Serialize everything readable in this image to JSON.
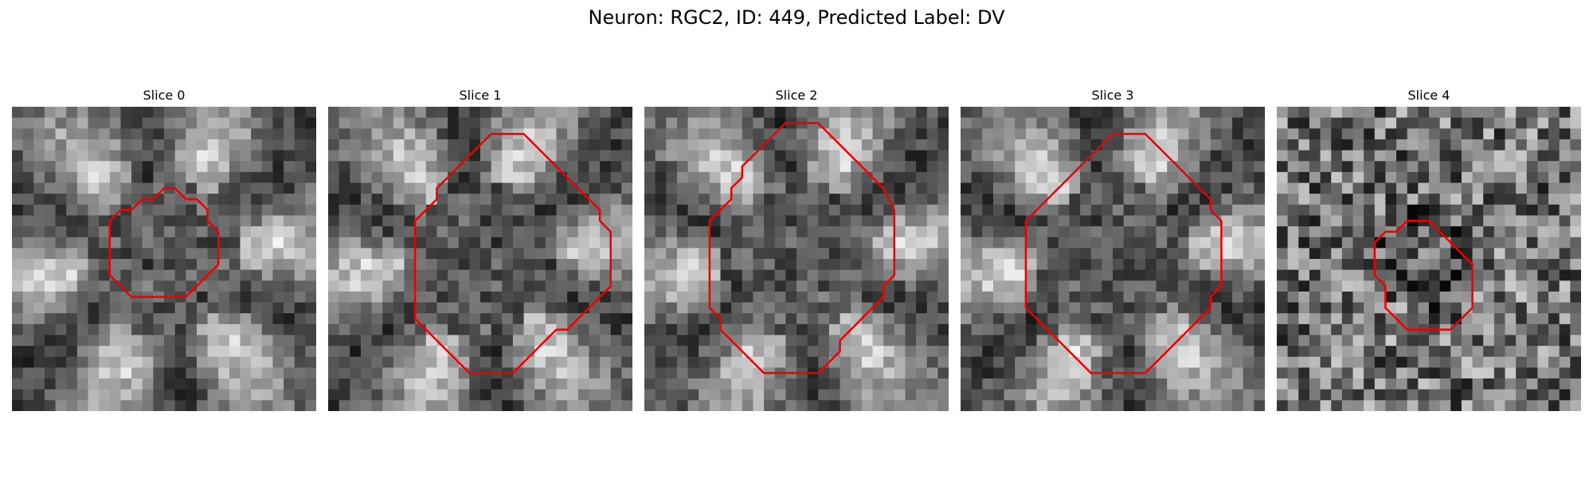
{
  "figure": {
    "title": "Neuron: RGC2, ID: 449, Predicted Label: DV"
  },
  "colors": {
    "contour": "#ee0000",
    "background": "#ffffff"
  },
  "panels": [
    {
      "title": "Slice 0",
      "seed": 11,
      "pattern": "star",
      "contour_color": "#ee0000",
      "contour_grid": [
        [
          14,
          7.5
        ],
        [
          15,
          7.5
        ],
        [
          16,
          8.5
        ],
        [
          17,
          8.5
        ],
        [
          18,
          9.5
        ],
        [
          18,
          10.5
        ],
        [
          19,
          11.5
        ],
        [
          19,
          12.5
        ],
        [
          19,
          13.5
        ],
        [
          19,
          14.5
        ],
        [
          18,
          15.5
        ],
        [
          17,
          16.5
        ],
        [
          16,
          17.5
        ],
        [
          13,
          17.5
        ],
        [
          11,
          17.5
        ],
        [
          10,
          16.5
        ],
        [
          9,
          15.5
        ],
        [
          9,
          14.5
        ],
        [
          9,
          13.5
        ],
        [
          9,
          12.5
        ],
        [
          9,
          11.5
        ],
        [
          9,
          10.5
        ],
        [
          10,
          9.5
        ],
        [
          11,
          9.5
        ],
        [
          12,
          8.5
        ],
        [
          13,
          8.5
        ]
      ]
    },
    {
      "title": "Slice 1",
      "seed": 23,
      "pattern": "star",
      "contour_color": "#ee0000",
      "contour_grid": [
        [
          15,
          2.5
        ],
        [
          18,
          2.5
        ],
        [
          19,
          3.5
        ],
        [
          20,
          4.5
        ],
        [
          21,
          5.5
        ],
        [
          22,
          6.5
        ],
        [
          23,
          7.5
        ],
        [
          24,
          8.5
        ],
        [
          25,
          9.5
        ],
        [
          25,
          10.5
        ],
        [
          26,
          11.5
        ],
        [
          26,
          13.5
        ],
        [
          26,
          15.5
        ],
        [
          26,
          16.5
        ],
        [
          25,
          17.5
        ],
        [
          24,
          18.5
        ],
        [
          23,
          19.5
        ],
        [
          22,
          20.5
        ],
        [
          21,
          20.5
        ],
        [
          20,
          21.5
        ],
        [
          19,
          22.5
        ],
        [
          18,
          23.5
        ],
        [
          17,
          24.5
        ],
        [
          16,
          24.5
        ],
        [
          14,
          24.5
        ],
        [
          13,
          24.5
        ],
        [
          12,
          23.5
        ],
        [
          11,
          22.5
        ],
        [
          10,
          21.5
        ],
        [
          9,
          20.5
        ],
        [
          8,
          19.5
        ],
        [
          8,
          17.5
        ],
        [
          8,
          15.5
        ],
        [
          8,
          13.5
        ],
        [
          8,
          11.5
        ],
        [
          8,
          10.5
        ],
        [
          9,
          9.5
        ],
        [
          10,
          8.5
        ],
        [
          10,
          7.5
        ],
        [
          11,
          6.5
        ],
        [
          12,
          5.5
        ],
        [
          13,
          4.5
        ],
        [
          14,
          3.5
        ]
      ]
    },
    {
      "title": "Slice 2",
      "seed": 37,
      "pattern": "star",
      "contour_color": "#ee0000",
      "contour_grid": [
        [
          13,
          1.5
        ],
        [
          16,
          1.5
        ],
        [
          17,
          2.5
        ],
        [
          18,
          3.5
        ],
        [
          19,
          4.5
        ],
        [
          20,
          5.5
        ],
        [
          21,
          6.5
        ],
        [
          22,
          7.5
        ],
        [
          23,
          9.5
        ],
        [
          23,
          11.5
        ],
        [
          23,
          13.5
        ],
        [
          23,
          15.5
        ],
        [
          22,
          16.5
        ],
        [
          22,
          17.5
        ],
        [
          21,
          18.5
        ],
        [
          20,
          19.5
        ],
        [
          19,
          20.5
        ],
        [
          18,
          21.5
        ],
        [
          18,
          22.5
        ],
        [
          17,
          23.5
        ],
        [
          16,
          24.5
        ],
        [
          14,
          24.5
        ],
        [
          12,
          24.5
        ],
        [
          11,
          24.5
        ],
        [
          10,
          23.5
        ],
        [
          9,
          22.5
        ],
        [
          8,
          21.5
        ],
        [
          7,
          20.5
        ],
        [
          7,
          19.5
        ],
        [
          6,
          18.5
        ],
        [
          6,
          16.5
        ],
        [
          6,
          14.5
        ],
        [
          6,
          12.5
        ],
        [
          6,
          10.5
        ],
        [
          7,
          9.5
        ],
        [
          8,
          8.5
        ],
        [
          8,
          7.5
        ],
        [
          9,
          6.5
        ],
        [
          9,
          5.5
        ],
        [
          10,
          4.5
        ],
        [
          11,
          3.5
        ],
        [
          12,
          2.5
        ]
      ]
    },
    {
      "title": "Slice 3",
      "seed": 53,
      "pattern": "star",
      "contour_color": "#ee0000",
      "contour_grid": [
        [
          14,
          2.5
        ],
        [
          17,
          2.5
        ],
        [
          18,
          3.5
        ],
        [
          19,
          4.5
        ],
        [
          20,
          5.5
        ],
        [
          21,
          6.5
        ],
        [
          22,
          7.5
        ],
        [
          23,
          8.5
        ],
        [
          23,
          9.5
        ],
        [
          24,
          10.5
        ],
        [
          24,
          12.5
        ],
        [
          24,
          14.5
        ],
        [
          24,
          16.5
        ],
        [
          23,
          17.5
        ],
        [
          23,
          18.5
        ],
        [
          22,
          19.5
        ],
        [
          21,
          20.5
        ],
        [
          20,
          21.5
        ],
        [
          19,
          22.5
        ],
        [
          18,
          23.5
        ],
        [
          17,
          24.5
        ],
        [
          15,
          24.5
        ],
        [
          13,
          24.5
        ],
        [
          12,
          24.5
        ],
        [
          11,
          23.5
        ],
        [
          10,
          22.5
        ],
        [
          9,
          21.5
        ],
        [
          8,
          20.5
        ],
        [
          7,
          19.5
        ],
        [
          6,
          18.5
        ],
        [
          6,
          16.5
        ],
        [
          6,
          14.5
        ],
        [
          6,
          12.5
        ],
        [
          6,
          10.5
        ],
        [
          7,
          9.5
        ],
        [
          8,
          8.5
        ],
        [
          9,
          7.5
        ],
        [
          10,
          6.5
        ],
        [
          11,
          5.5
        ],
        [
          12,
          4.5
        ],
        [
          13,
          3.5
        ]
      ]
    },
    {
      "title": "Slice 4",
      "seed": 71,
      "pattern": "noise",
      "contour_color": "#ee0000",
      "contour_grid": [
        [
          12,
          10.5
        ],
        [
          13,
          10.5
        ],
        [
          14,
          10.5
        ],
        [
          15,
          11.5
        ],
        [
          16,
          12.5
        ],
        [
          17,
          13.5
        ],
        [
          18,
          14.5
        ],
        [
          18,
          15.5
        ],
        [
          18,
          16.5
        ],
        [
          18,
          17.5
        ],
        [
          18,
          18.5
        ],
        [
          17,
          19.5
        ],
        [
          16,
          20.5
        ],
        [
          15,
          20.5
        ],
        [
          14,
          20.5
        ],
        [
          13,
          20.5
        ],
        [
          12,
          20.5
        ],
        [
          11,
          19.5
        ],
        [
          10,
          18.5
        ],
        [
          10,
          17.5
        ],
        [
          10,
          16.5
        ],
        [
          9,
          15.5
        ],
        [
          9,
          14.5
        ],
        [
          9,
          13.5
        ],
        [
          9,
          12.5
        ],
        [
          10,
          11.5
        ],
        [
          11,
          11.5
        ]
      ]
    }
  ]
}
